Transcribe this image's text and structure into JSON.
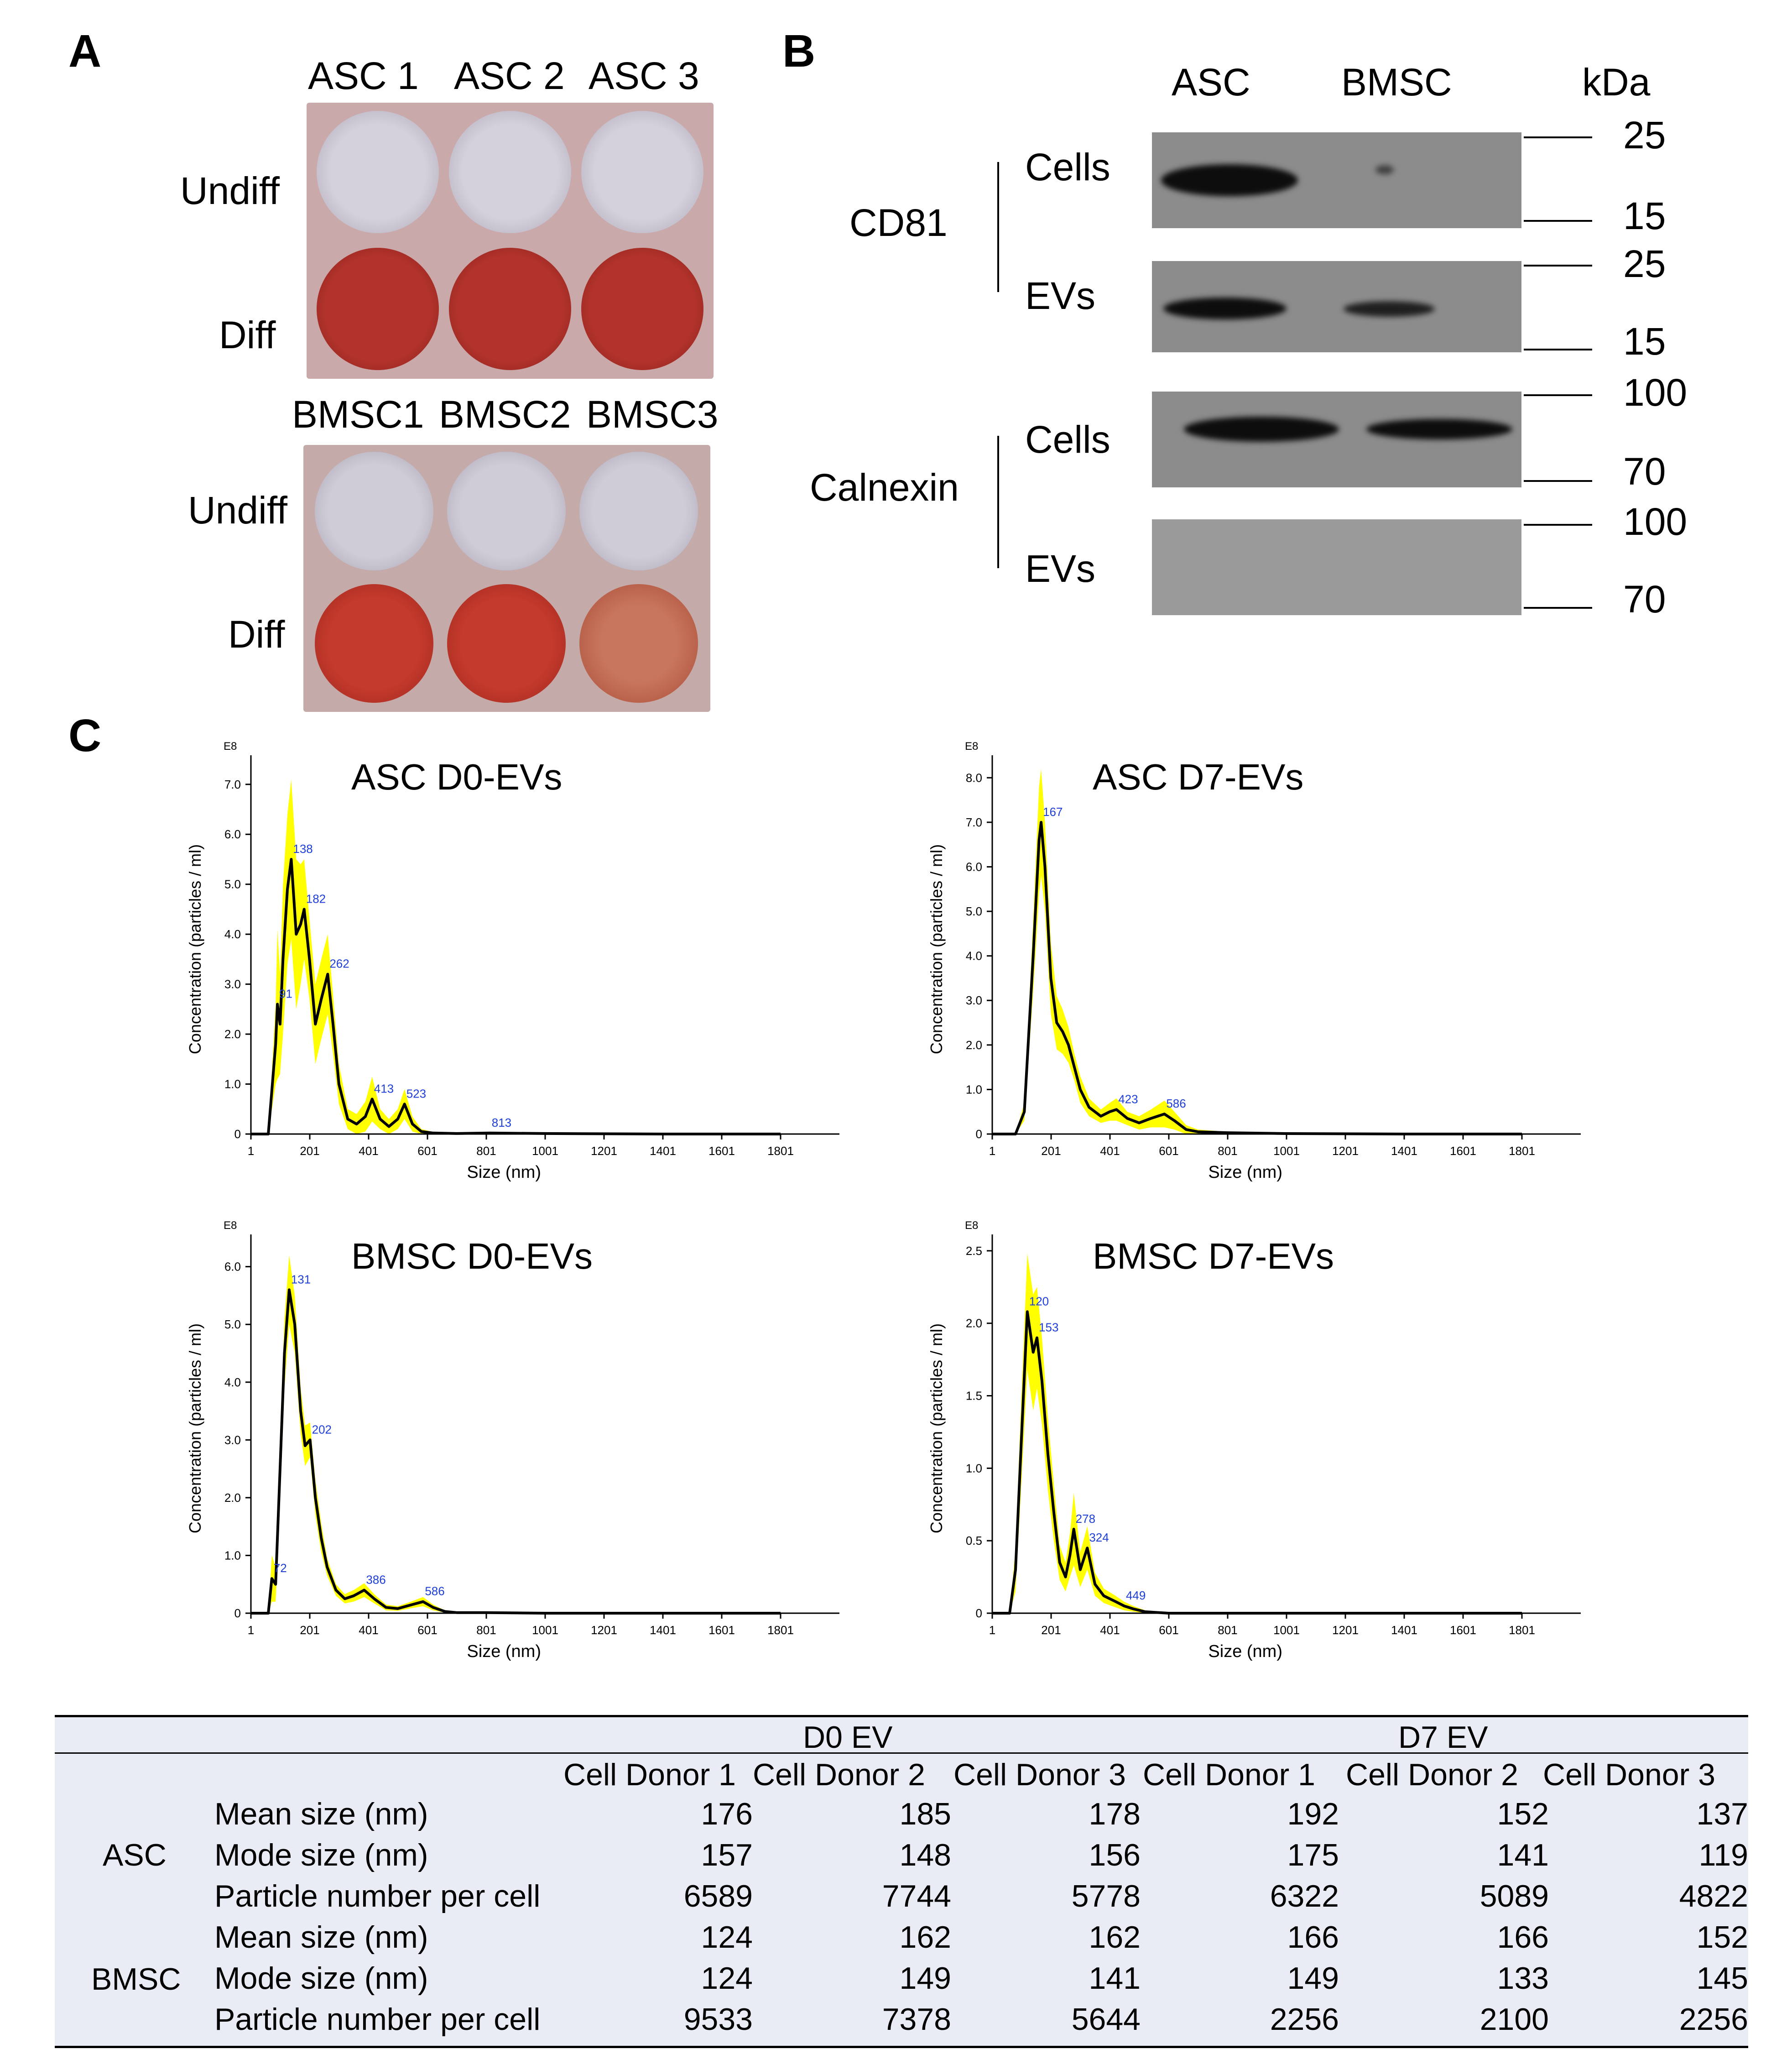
{
  "panel_a": {
    "letter": "A",
    "asc_columns": [
      "ASC 1",
      "ASC 2",
      "ASC 3"
    ],
    "bmsc_columns": [
      "BMSC1",
      "BMSC2",
      "BMSC3"
    ],
    "row_labels": [
      "Undiff",
      "Diff"
    ]
  },
  "panel_b": {
    "letter": "B",
    "columns": [
      "ASC",
      "BMSC"
    ],
    "unit": "kDa",
    "proteins": [
      "CD81",
      "Calnexin"
    ],
    "fractions": [
      "Cells",
      "EVs"
    ],
    "markers": {
      "cd81_cells": [
        "25",
        "15"
      ],
      "cd81_evs": [
        "25",
        "15"
      ],
      "calnexin_cells": [
        "100",
        "70"
      ],
      "calnexin_evs": [
        "100",
        "70"
      ]
    }
  },
  "panel_c": {
    "letter": "C",
    "exponent_label": "E8",
    "xlabel": "Size (nm)",
    "ylabel": "Concentration (particles / ml)"
  },
  "chart_data": [
    {
      "type": "line",
      "title": "ASC D0-EVs",
      "xlabel": "Size (nm)",
      "ylabel": "Concentration (particles / ml)",
      "y_multiplier": "E8",
      "xlim": [
        1,
        2001
      ],
      "ylim": [
        0,
        7.4
      ],
      "x_ticks": [
        1,
        201,
        401,
        601,
        801,
        1001,
        1201,
        1401,
        1601,
        1801
      ],
      "y_ticks": [
        0,
        1.0,
        2.0,
        3.0,
        4.0,
        5.0,
        6.0,
        7.0
      ],
      "y_tick_labels": [
        "0",
        "1.0",
        "2.0",
        "3.0",
        "4.0",
        "5.0",
        "6.0",
        "7.0"
      ],
      "peak_labels": [
        {
          "x": 91,
          "y": 2.6,
          "label": "91"
        },
        {
          "x": 138,
          "y": 5.5,
          "label": "138"
        },
        {
          "x": 182,
          "y": 4.5,
          "label": "182"
        },
        {
          "x": 262,
          "y": 3.2,
          "label": "262"
        },
        {
          "x": 413,
          "y": 0.7,
          "label": "413"
        },
        {
          "x": 523,
          "y": 0.6,
          "label": "523"
        },
        {
          "x": 813,
          "y": 0.02,
          "label": "813"
        }
      ],
      "series": [
        {
          "x": [
            1,
            60,
            85,
            91,
            100,
            110,
            125,
            138,
            155,
            170,
            182,
            200,
            220,
            240,
            262,
            280,
            300,
            330,
            360,
            390,
            413,
            440,
            470,
            500,
            523,
            550,
            580,
            620,
            700,
            813,
            1000,
            1400,
            1801
          ],
          "y": [
            0,
            0,
            1.8,
            2.6,
            2.2,
            3.5,
            4.9,
            5.5,
            4.0,
            4.2,
            4.5,
            3.5,
            2.2,
            2.7,
            3.2,
            2.2,
            1.0,
            0.3,
            0.2,
            0.35,
            0.7,
            0.3,
            0.15,
            0.3,
            0.6,
            0.2,
            0.05,
            0.02,
            0.01,
            0.02,
            0.01,
            0,
            0
          ],
          "band": [
            0,
            0,
            0.8,
            1.5,
            1.0,
            1.5,
            1.5,
            1.6,
            1.5,
            1.2,
            1.0,
            0.8,
            0.8,
            0.8,
            0.8,
            0.6,
            0.4,
            0.2,
            0.2,
            0.3,
            0.45,
            0.2,
            0.15,
            0.2,
            0.3,
            0.15,
            0.05,
            0.02,
            0.01,
            0.01,
            0.01,
            0,
            0
          ]
        }
      ]
    },
    {
      "type": "line",
      "title": "ASC D7-EVs",
      "xlabel": "Size (nm)",
      "ylabel": "Concentration (particles / ml)",
      "y_multiplier": "E8",
      "xlim": [
        1,
        2001
      ],
      "ylim": [
        0,
        8.3
      ],
      "x_ticks": [
        1,
        201,
        401,
        601,
        801,
        1001,
        1201,
        1401,
        1601,
        1801
      ],
      "y_ticks": [
        0,
        1.0,
        2.0,
        3.0,
        4.0,
        5.0,
        6.0,
        7.0,
        8.0
      ],
      "y_tick_labels": [
        "0",
        "1.0",
        "2.0",
        "3.0",
        "4.0",
        "5.0",
        "6.0",
        "7.0",
        "8.0"
      ],
      "peak_labels": [
        {
          "x": 167,
          "y": 7.0,
          "label": "167"
        },
        {
          "x": 423,
          "y": 0.55,
          "label": "423"
        },
        {
          "x": 586,
          "y": 0.45,
          "label": "586"
        }
      ],
      "series": [
        {
          "x": [
            1,
            80,
            110,
            140,
            160,
            167,
            180,
            200,
            220,
            240,
            260,
            280,
            300,
            330,
            370,
            400,
            423,
            460,
            500,
            540,
            586,
            620,
            660,
            700,
            800,
            1000,
            1400,
            1801
          ],
          "y": [
            0,
            0,
            0.5,
            4.0,
            6.6,
            7.0,
            6.0,
            3.5,
            2.5,
            2.3,
            2.0,
            1.5,
            1.0,
            0.6,
            0.4,
            0.5,
            0.55,
            0.35,
            0.25,
            0.35,
            0.45,
            0.3,
            0.1,
            0.05,
            0.03,
            0.01,
            0,
            0
          ],
          "band": [
            0,
            0,
            0.2,
            0.8,
            1.2,
            1.2,
            1.0,
            0.8,
            0.6,
            0.5,
            0.4,
            0.3,
            0.3,
            0.2,
            0.15,
            0.2,
            0.25,
            0.15,
            0.15,
            0.2,
            0.3,
            0.2,
            0.1,
            0.05,
            0.02,
            0.01,
            0,
            0
          ]
        }
      ]
    },
    {
      "type": "line",
      "title": "BMSC D0-EVs",
      "xlabel": "Size (nm)",
      "ylabel": "Concentration (particles / ml)",
      "y_multiplier": "E8",
      "xlim": [
        1,
        2001
      ],
      "ylim": [
        0,
        6.4
      ],
      "x_ticks": [
        1,
        201,
        401,
        601,
        801,
        1001,
        1201,
        1401,
        1601,
        1801
      ],
      "y_ticks": [
        0,
        1.0,
        2.0,
        3.0,
        4.0,
        5.0,
        6.0
      ],
      "y_tick_labels": [
        "0",
        "1.0",
        "2.0",
        "3.0",
        "4.0",
        "5.0",
        "6.0"
      ],
      "peak_labels": [
        {
          "x": 72,
          "y": 0.6,
          "label": "72"
        },
        {
          "x": 131,
          "y": 5.6,
          "label": "131"
        },
        {
          "x": 202,
          "y": 3.0,
          "label": "202"
        },
        {
          "x": 386,
          "y": 0.4,
          "label": "386"
        },
        {
          "x": 586,
          "y": 0.2,
          "label": "586"
        }
      ],
      "series": [
        {
          "x": [
            1,
            60,
            72,
            85,
            100,
            115,
            131,
            150,
            170,
            185,
            202,
            220,
            240,
            260,
            290,
            320,
            350,
            386,
            420,
            460,
            500,
            550,
            586,
            620,
            660,
            700,
            800,
            1000,
            1400,
            1801
          ],
          "y": [
            0,
            0,
            0.6,
            0.5,
            2.5,
            4.5,
            5.6,
            5.0,
            3.5,
            2.9,
            3.0,
            2.0,
            1.3,
            0.8,
            0.4,
            0.25,
            0.3,
            0.4,
            0.25,
            0.1,
            0.08,
            0.15,
            0.2,
            0.1,
            0.03,
            0.01,
            0.01,
            0,
            0,
            0
          ],
          "band": [
            0,
            0,
            0.4,
            0.3,
            0.6,
            0.6,
            0.6,
            0.5,
            0.4,
            0.35,
            0.3,
            0.3,
            0.25,
            0.15,
            0.1,
            0.08,
            0.1,
            0.12,
            0.08,
            0.05,
            0.04,
            0.06,
            0.08,
            0.05,
            0.02,
            0.01,
            0,
            0,
            0,
            0
          ]
        }
      ]
    },
    {
      "type": "line",
      "title": "BMSC D7-EVs",
      "xlabel": "Size (nm)",
      "ylabel": "Concentration (particles / ml)",
      "y_multiplier": "E8",
      "xlim": [
        1,
        2001
      ],
      "ylim": [
        0,
        2.55
      ],
      "x_ticks": [
        1,
        201,
        401,
        601,
        801,
        1001,
        1201,
        1401,
        1601,
        1801
      ],
      "y_ticks": [
        0,
        0.5,
        1.0,
        1.5,
        2.0,
        2.5
      ],
      "y_tick_labels": [
        "0",
        "0.5",
        "1.0",
        "1.5",
        "2.0",
        "2.5"
      ],
      "peak_labels": [
        {
          "x": 120,
          "y": 2.08,
          "label": "120"
        },
        {
          "x": 153,
          "y": 1.9,
          "label": "153"
        },
        {
          "x": 278,
          "y": 0.58,
          "label": "278"
        },
        {
          "x": 324,
          "y": 0.45,
          "label": "324"
        },
        {
          "x": 449,
          "y": 0.05,
          "label": "449"
        }
      ],
      "series": [
        {
          "x": [
            1,
            60,
            80,
            100,
            120,
            140,
            153,
            170,
            190,
            210,
            230,
            250,
            265,
            278,
            300,
            324,
            350,
            380,
            420,
            449,
            480,
            520,
            600,
            800,
            1000,
            1400,
            1801
          ],
          "y": [
            0,
            0,
            0.3,
            1.2,
            2.08,
            1.8,
            1.9,
            1.6,
            1.1,
            0.7,
            0.35,
            0.25,
            0.4,
            0.58,
            0.3,
            0.45,
            0.2,
            0.12,
            0.08,
            0.05,
            0.03,
            0.01,
            0,
            0,
            0,
            0,
            0
          ],
          "band": [
            0,
            0,
            0.15,
            0.3,
            0.4,
            0.4,
            0.35,
            0.3,
            0.25,
            0.2,
            0.12,
            0.1,
            0.15,
            0.25,
            0.12,
            0.15,
            0.08,
            0.05,
            0.04,
            0.03,
            0.02,
            0.01,
            0,
            0,
            0,
            0,
            0
          ]
        }
      ]
    }
  ],
  "table": {
    "group_headers": [
      "D0 EV",
      "D7 EV"
    ],
    "columns": [
      "Cell Donor 1",
      "Cell Donor 2",
      "Cell Donor 3",
      "Cell Donor 1",
      "Cell Donor 2",
      "Cell Donor 3"
    ],
    "groups": [
      {
        "name": "ASC",
        "rows": [
          {
            "label": "Mean size (nm)",
            "values": [
              "176",
              "185",
              "178",
              "192",
              "152",
              "137"
            ]
          },
          {
            "label": "Mode size (nm)",
            "values": [
              "157",
              "148",
              "156",
              "175",
              "141",
              "119"
            ]
          },
          {
            "label": "Particle number per cell",
            "values": [
              "6589",
              "7744",
              "5778",
              "6322",
              "5089",
              "4822"
            ]
          }
        ]
      },
      {
        "name": "BMSC",
        "rows": [
          {
            "label": "Mean size (nm)",
            "values": [
              "124",
              "162",
              "162",
              "166",
              "166",
              "152"
            ]
          },
          {
            "label": "Mode size (nm)",
            "values": [
              "124",
              "149",
              "141",
              "149",
              "133",
              "145"
            ]
          },
          {
            "label": "Particle number per cell",
            "values": [
              "9533",
              "7378",
              "5644",
              "2256",
              "2100",
              "2256"
            ]
          }
        ]
      }
    ]
  },
  "colors": {
    "curve": "#000000",
    "error_band": "#ffff00",
    "peak_label": "#1f3fd6",
    "alizarin_red": "#b3332c",
    "table_bg": "#e9ecf4"
  }
}
